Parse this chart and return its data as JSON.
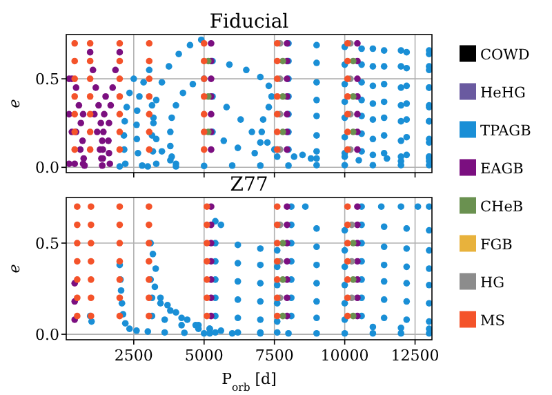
{
  "chart_data": [
    {
      "type": "scatter",
      "title": "Fiducial",
      "ylabel": "e",
      "xlim": [
        100,
        13100
      ],
      "ylim": [
        -0.03,
        0.75
      ],
      "xticks": [
        2500,
        5000,
        7500,
        10000,
        12500
      ],
      "yticks": [
        {
          "value": 0,
          "label": "0.0"
        },
        0.5
      ],
      "tick_labels": "y",
      "grid": true,
      "marker": "circle",
      "legend": "right",
      "series": [
        {
          "name": "MS",
          "color": "#f4532a",
          "x": [
            400,
            400,
            400,
            400,
            400,
            400,
            400,
            950,
            950,
            950,
            950,
            950,
            950,
            950,
            2000,
            2000,
            2000,
            2000,
            2000,
            2000,
            2000,
            3050,
            3050,
            3050,
            3050,
            3050,
            3050,
            3050,
            5000,
            5000,
            5000,
            5000,
            5000,
            5000,
            5000,
            7600,
            7600,
            7600,
            7600,
            7600,
            7600,
            7600,
            10100,
            10100,
            10100,
            10100,
            10100,
            10100,
            10100
          ],
          "values": [
            0.7,
            0.6,
            0.5,
            0.4,
            0.3,
            0.2,
            0.1,
            0.7,
            0.6,
            0.5,
            0.4,
            0.3,
            0.2,
            0.1,
            0.7,
            0.6,
            0.5,
            0.4,
            0.3,
            0.2,
            0.1,
            0.7,
            0.6,
            0.5,
            0.4,
            0.3,
            0.2,
            0.1,
            0.7,
            0.6,
            0.5,
            0.4,
            0.3,
            0.2,
            0.1,
            0.7,
            0.6,
            0.5,
            0.4,
            0.3,
            0.2,
            0.1,
            0.7,
            0.6,
            0.5,
            0.4,
            0.3,
            0.2,
            0.1
          ]
        },
        {
          "name": "HG",
          "color": "#8c8c8c",
          "x": [
            7700,
            7700,
            7700,
            7700,
            10200,
            10200,
            10200,
            10200
          ],
          "values": [
            0.7,
            0.5,
            0.3,
            0.1,
            0.7,
            0.5,
            0.3,
            0.1
          ]
        },
        {
          "name": "FGB",
          "color": "#e8b23c"
        },
        {
          "name": "CHeB",
          "color": "#6a9150",
          "x": [
            5150,
            5150,
            5150,
            7800,
            7800,
            7800,
            10300,
            10300,
            10300
          ],
          "values": [
            0.6,
            0.4,
            0.2,
            0.6,
            0.4,
            0.2,
            0.6,
            0.4,
            0.2
          ]
        },
        {
          "name": "EAGB",
          "color": "#7b0f80",
          "x": [
            200,
            300,
            450,
            550,
            620,
            680,
            720,
            200,
            300,
            450,
            600,
            700,
            200,
            400,
            700,
            750,
            950,
            1050,
            1150,
            1250,
            1330,
            1380,
            1400,
            1100,
            1200,
            1300,
            1350,
            1380,
            2000,
            1850,
            1750,
            1680,
            1620,
            1600,
            1620,
            1650,
            1500,
            1450,
            1420,
            1400,
            5250,
            5250,
            5250,
            5250,
            5250,
            5250,
            5250,
            7950,
            7950,
            7950,
            7950,
            7950,
            7950,
            7950,
            10450,
            10450,
            10450,
            10450,
            10450,
            10450,
            10450
          ],
          "values": [
            0.5,
            0.5,
            0.45,
            0.35,
            0.25,
            0.15,
            0.05,
            0.3,
            0.2,
            0.2,
            0.1,
            0.02,
            0.02,
            0.02,
            0.3,
            0.01,
            0.65,
            0.55,
            0.45,
            0.35,
            0.25,
            0.15,
            0.05,
            0.3,
            0.2,
            0.1,
            0.05,
            0.01,
            0.65,
            0.55,
            0.45,
            0.35,
            0.25,
            0.15,
            0.08,
            0.02,
            0.4,
            0.3,
            0.2,
            0.1,
            0.7,
            0.6,
            0.5,
            0.4,
            0.3,
            0.2,
            0.1,
            0.7,
            0.6,
            0.5,
            0.4,
            0.3,
            0.2,
            0.1,
            0.7,
            0.6,
            0.5,
            0.4,
            0.3,
            0.2,
            0.1
          ]
        },
        {
          "name": "TPAGB",
          "color": "#1a8fd6",
          "x": [
            2500,
            2350,
            2250,
            2180,
            2150,
            2160,
            2200,
            3050,
            2850,
            2700,
            2620,
            2600,
            2610,
            2650,
            2800,
            4900,
            4500,
            4100,
            3750,
            3500,
            3300,
            3200,
            3150,
            3180,
            3300,
            5000,
            4600,
            4250,
            4000,
            3850,
            3800,
            3800,
            3850,
            4000,
            3150,
            3200,
            3300,
            3500,
            3800,
            5300,
            5900,
            6500,
            7000,
            7300,
            7400,
            7300,
            7100,
            7050,
            7250,
            7600,
            8200,
            9000,
            5300,
            5800,
            6300,
            6700,
            7000,
            7500,
            8500,
            10000,
            11500,
            13000,
            5300,
            5700,
            6200,
            6800,
            7600,
            8800,
            10500,
            12000,
            13000,
            2000,
            3000,
            4000,
            5000,
            6000,
            7000,
            8000,
            9000,
            10000,
            11000,
            12000,
            13000,
            8000,
            9000,
            10000,
            11000,
            12000,
            13000,
            8000,
            9000,
            10000,
            11000,
            12000,
            13000,
            8000,
            9000,
            10000,
            11000,
            12000,
            13000,
            8000,
            9000,
            10000,
            11000,
            12000,
            13000,
            8000,
            9000,
            10000,
            11000,
            12000,
            13000,
            8000,
            9000,
            10000,
            11000,
            12000,
            13000,
            8000,
            9000,
            10000,
            11000,
            12000,
            13000,
            10600,
            11400,
            12200,
            13000,
            10600,
            11400,
            12200,
            13000,
            10600,
            11400,
            12200,
            13000,
            10600,
            11400,
            12200,
            13000,
            10600,
            11400,
            12200,
            13000,
            10600,
            11400,
            12200,
            13000,
            10600,
            11400,
            12200,
            13000
          ],
          "values": [
            0.5,
            0.42,
            0.34,
            0.26,
            0.18,
            0.1,
            0.02,
            0.55,
            0.48,
            0.4,
            0.32,
            0.24,
            0.16,
            0.08,
            0.01,
            0.72,
            0.69,
            0.64,
            0.57,
            0.48,
            0.38,
            0.28,
            0.18,
            0.09,
            0.02,
            0.5,
            0.47,
            0.42,
            0.35,
            0.28,
            0.2,
            0.12,
            0.06,
            0.02,
            0.35,
            0.25,
            0.16,
            0.09,
            0.04,
            0.6,
            0.58,
            0.55,
            0.51,
            0.46,
            0.4,
            0.34,
            0.27,
            0.2,
            0.14,
            0.1,
            0.06,
            0.05,
            0.4,
            0.34,
            0.27,
            0.2,
            0.14,
            0.1,
            0.07,
            0.06,
            0.05,
            0.05,
            0.2,
            0.15,
            0.11,
            0.08,
            0.06,
            0.05,
            0.04,
            0.035,
            0.035,
            0.005,
            0.005,
            0.005,
            0.008,
            0.01,
            0.01,
            0.01,
            0.012,
            0.012,
            0.012,
            0.012,
            0.012,
            0.7,
            0.69,
            0.68,
            0.67,
            0.66,
            0.66,
            0.6,
            0.59,
            0.58,
            0.57,
            0.57,
            0.57,
            0.5,
            0.48,
            0.47,
            0.46,
            0.45,
            0.45,
            0.4,
            0.38,
            0.37,
            0.36,
            0.35,
            0.34,
            0.3,
            0.29,
            0.28,
            0.27,
            0.26,
            0.26,
            0.2,
            0.18,
            0.17,
            0.16,
            0.15,
            0.14,
            0.1,
            0.09,
            0.08,
            0.07,
            0.06,
            0.06,
            0.67,
            0.66,
            0.65,
            0.64,
            0.58,
            0.57,
            0.56,
            0.55,
            0.48,
            0.47,
            0.46,
            0.45,
            0.38,
            0.37,
            0.36,
            0.35,
            0.29,
            0.28,
            0.27,
            0.26,
            0.19,
            0.18,
            0.17,
            0.16,
            0.09,
            0.08,
            0.07,
            0.06
          ]
        },
        {
          "name": "HeHG",
          "color": "#6a5aa0"
        },
        {
          "name": "COWD",
          "color": "#000000"
        }
      ]
    },
    {
      "type": "scatter",
      "title": "Z77",
      "xlabel": "P$_{orb}$ [d]",
      "ylabel": "e",
      "xlim": [
        100,
        13100
      ],
      "ylim": [
        -0.03,
        0.75
      ],
      "xticks": [
        2500,
        5000,
        7500,
        10000,
        12500
      ],
      "yticks": [
        {
          "value": 0,
          "label": "0.0"
        },
        0.5
      ],
      "grid": true,
      "marker": "circle",
      "series": [
        {
          "color": "#f4532a",
          "x": [
            490,
            490,
            490,
            490,
            490,
            490,
            490,
            980,
            980,
            980,
            980,
            980,
            980,
            980,
            2000,
            2000,
            2000,
            2000,
            2000,
            2000,
            2000,
            3040,
            3040,
            3040,
            3040,
            3040,
            3040,
            3040,
            5100,
            5100,
            5100,
            5100,
            5100,
            5100,
            5100,
            7600,
            7600,
            7600,
            7600,
            7600,
            7600,
            7600,
            10100,
            10100,
            10100,
            10100,
            10100,
            10100,
            10100
          ],
          "values": [
            0.7,
            0.6,
            0.5,
            0.4,
            0.3,
            0.2,
            0.1,
            0.7,
            0.6,
            0.5,
            0.4,
            0.3,
            0.2,
            0.1,
            0.7,
            0.6,
            0.5,
            0.4,
            0.3,
            0.2,
            0.1,
            0.7,
            0.6,
            0.5,
            0.4,
            0.3,
            0.2,
            0.1,
            0.7,
            0.6,
            0.5,
            0.4,
            0.3,
            0.2,
            0.1,
            0.7,
            0.6,
            0.5,
            0.4,
            0.3,
            0.2,
            0.1,
            0.7,
            0.6,
            0.5,
            0.4,
            0.3,
            0.2,
            0.1
          ]
        },
        {
          "color": "#8c8c8c",
          "x": [
            7700,
            7700,
            7700,
            10250,
            10250,
            10250
          ],
          "values": [
            0.6,
            0.4,
            0.2,
            0.6,
            0.4,
            0.2
          ]
        },
        {
          "color": "#6a9150",
          "x": [
            7800,
            7800,
            7800,
            10300,
            10300,
            10300
          ],
          "values": [
            0.5,
            0.3,
            0.1,
            0.5,
            0.3,
            0.1
          ]
        },
        {
          "color": "#7b0f80",
          "x": [
            400,
            400,
            400,
            5250,
            5250,
            5250,
            5250,
            5250,
            5250,
            5250,
            7950,
            7950,
            7950,
            7950,
            7950,
            7950,
            7950,
            10450,
            10450,
            10450,
            10450,
            10450,
            10450,
            10450
          ],
          "values": [
            0.28,
            0.18,
            0.08,
            0.7,
            0.6,
            0.5,
            0.4,
            0.3,
            0.2,
            0.1,
            0.7,
            0.6,
            0.5,
            0.4,
            0.3,
            0.2,
            0.1,
            0.7,
            0.6,
            0.5,
            0.4,
            0.3,
            0.2,
            0.1
          ]
        },
        {
          "color": "#1a8fd6",
          "x": [
            2000,
            2030,
            2050,
            2080,
            2120,
            2200,
            2350,
            2600,
            3000,
            3600,
            4300,
            5000,
            950,
            1000,
            3100,
            3180,
            3280,
            3100,
            3250,
            3450,
            3700,
            4000,
            4400,
            4800,
            5200,
            3150,
            3450,
            3800,
            4200,
            4700,
            5200,
            3150,
            3600,
            4200,
            4800,
            5600,
            5400,
            5600,
            5400,
            6200,
            7000,
            7600,
            5400,
            6200,
            7000,
            7600,
            5400,
            6200,
            7000,
            7600,
            5400,
            6200,
            7000,
            7600,
            5400,
            6200,
            7000,
            7600,
            5400,
            6200,
            7000,
            7600,
            5200,
            6000,
            7000,
            8000,
            8100,
            8600,
            8100,
            9000,
            10000,
            8100,
            9000,
            10000,
            8100,
            9000,
            10000,
            8100,
            9000,
            10000,
            8100,
            9000,
            10000,
            8100,
            9000,
            10000,
            9000,
            10000,
            11000,
            12000,
            13000,
            10600,
            11300,
            12000,
            12600,
            13000,
            10600,
            11400,
            12200,
            13000,
            10600,
            11400,
            12200,
            13000,
            10600,
            11400,
            12200,
            13000,
            10600,
            11400,
            12200,
            13000,
            10600,
            11400,
            12200,
            13000,
            10600,
            11400,
            12200,
            13000,
            11000,
            12000,
            13000
          ],
          "values": [
            0.38,
            0.3,
            0.24,
            0.17,
            0.11,
            0.06,
            0.03,
            0.02,
            0.015,
            0.01,
            0.008,
            0.005,
            0.1,
            0.07,
            0.5,
            0.44,
            0.36,
            0.3,
            0.26,
            0.2,
            0.16,
            0.12,
            0.08,
            0.05,
            0.03,
            0.2,
            0.17,
            0.13,
            0.09,
            0.05,
            0.03,
            0.1,
            0.08,
            0.05,
            0.03,
            0.02,
            0.62,
            0.6,
            0.5,
            0.49,
            0.47,
            0.46,
            0.4,
            0.39,
            0.38,
            0.37,
            0.3,
            0.29,
            0.28,
            0.27,
            0.2,
            0.19,
            0.18,
            0.17,
            0.1,
            0.09,
            0.08,
            0.07,
            0.01,
            0.01,
            0.01,
            0.01,
            0.005,
            0.005,
            0.005,
            0.005,
            0.7,
            0.7,
            0.6,
            0.58,
            0.57,
            0.5,
            0.48,
            0.46,
            0.4,
            0.38,
            0.37,
            0.3,
            0.28,
            0.27,
            0.2,
            0.18,
            0.17,
            0.1,
            0.09,
            0.08,
            0.005,
            0.005,
            0.005,
            0.005,
            0.005,
            0.7,
            0.7,
            0.7,
            0.7,
            0.7,
            0.6,
            0.59,
            0.58,
            0.57,
            0.5,
            0.48,
            0.47,
            0.46,
            0.4,
            0.38,
            0.37,
            0.36,
            0.3,
            0.29,
            0.28,
            0.27,
            0.2,
            0.19,
            0.18,
            0.17,
            0.1,
            0.09,
            0.08,
            0.07,
            0.04,
            0.035,
            0.03
          ]
        }
      ]
    }
  ]
}
